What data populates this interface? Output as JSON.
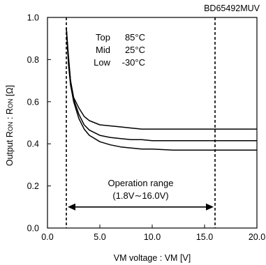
{
  "chart_data": {
    "type": "line",
    "title": "BD65492MUV",
    "xlabel": "VM voltage : VM [V]",
    "ylabel": {
      "pre": "Output R",
      "sub1": "ON",
      "mid": " : R",
      "sub2": "ON",
      "post": " [Ω]"
    },
    "xlim": [
      0,
      20
    ],
    "ylim": [
      0,
      1.0
    ],
    "x_ticks": [
      0,
      5,
      10,
      15,
      20
    ],
    "x_tick_labels": [
      "0.0",
      "5.0",
      "10.0",
      "15.0",
      "20.0"
    ],
    "y_ticks": [
      0,
      0.2,
      0.4,
      0.6,
      0.8,
      1.0
    ],
    "y_tick_labels": [
      "0.0",
      "0.2",
      "0.4",
      "0.6",
      "0.8",
      "1.0"
    ],
    "grid": false,
    "legend": {
      "rows": [
        {
          "label": "Top",
          "value": "85°C"
        },
        {
          "label": "Mid",
          "value": "25°C"
        },
        {
          "label": "Low",
          "value": "-30°C"
        }
      ]
    },
    "series": [
      {
        "x": [
          1.8,
          2.0,
          2.2,
          2.5,
          3.0,
          3.5,
          4.0,
          5.0,
          6.0,
          7.0,
          8.0,
          9.0,
          10.0,
          12.0,
          14.0,
          16.0,
          18.0,
          20.0
        ],
        "values": [
          0.95,
          0.82,
          0.7,
          0.62,
          0.57,
          0.53,
          0.51,
          0.49,
          0.485,
          0.48,
          0.475,
          0.47,
          0.47,
          0.47,
          0.47,
          0.47,
          0.47,
          0.47
        ]
      },
      {
        "x": [
          1.8,
          2.0,
          2.2,
          2.5,
          3.0,
          3.5,
          4.0,
          5.0,
          6.0,
          7.0,
          8.0,
          9.0,
          10.0,
          12.0,
          14.0,
          16.0,
          18.0,
          20.0
        ],
        "values": [
          0.95,
          0.8,
          0.7,
          0.61,
          0.54,
          0.49,
          0.465,
          0.44,
          0.43,
          0.425,
          0.42,
          0.42,
          0.415,
          0.415,
          0.415,
          0.415,
          0.415,
          0.415
        ]
      },
      {
        "x": [
          1.8,
          2.0,
          2.2,
          2.5,
          3.0,
          3.5,
          4.0,
          5.0,
          6.0,
          7.0,
          8.0,
          9.0,
          10.0,
          12.0,
          14.0,
          16.0,
          18.0,
          20.0
        ],
        "values": [
          0.95,
          0.78,
          0.68,
          0.6,
          0.52,
          0.47,
          0.44,
          0.41,
          0.395,
          0.385,
          0.38,
          0.375,
          0.375,
          0.37,
          0.37,
          0.37,
          0.37,
          0.37
        ]
      }
    ],
    "vlines": [
      1.8,
      16.0
    ],
    "operation_range": {
      "label_line1": "Operation range",
      "label_line2": "(1.8V∼16.0V)",
      "x_start": 1.8,
      "x_end": 16.0,
      "y": 0.1
    }
  }
}
